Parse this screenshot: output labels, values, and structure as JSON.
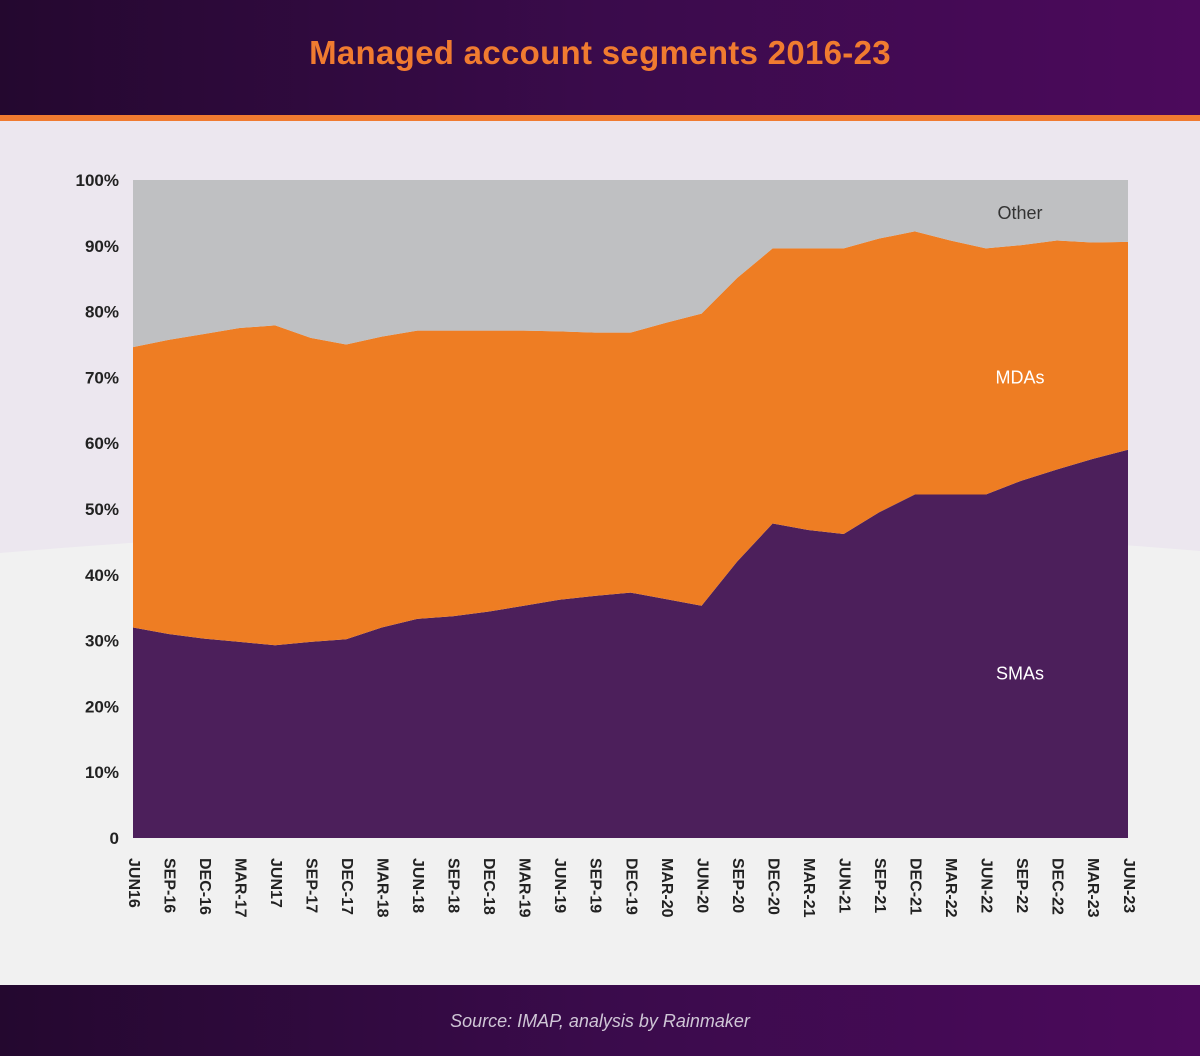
{
  "header": {
    "title": "Managed account segments 2016-23"
  },
  "footer": {
    "source": "Source: IMAP, analysis by Rainmaker"
  },
  "colors": {
    "smas": "#4c1f5b",
    "mdas": "#ee7d23",
    "other": "#bfc0c2",
    "header_bg": "#3a0b4b",
    "accent": "#f07b30"
  },
  "chart_data": {
    "type": "area",
    "stacked": true,
    "title": "Managed account segments 2016-23",
    "xlabel": "",
    "ylabel": "",
    "ylim": [
      0,
      100
    ],
    "yticks": [
      0,
      10,
      20,
      30,
      40,
      50,
      60,
      70,
      80,
      90,
      100
    ],
    "ytick_labels": [
      "0",
      "10%",
      "20%",
      "30%",
      "40%",
      "50%",
      "60%",
      "70%",
      "80%",
      "90%",
      "100%"
    ],
    "categories": [
      "JUN16",
      "SEP-16",
      "DEC-16",
      "MAR-17",
      "JUN17",
      "SEP-17",
      "DEC-17",
      "MAR-18",
      "JUN-18",
      "SEP-18",
      "DEC-18",
      "MAR-19",
      "JUN-19",
      "SEP-19",
      "DEC-19",
      "MAR-20",
      "JUN-20",
      "SEP-20",
      "DEC-20",
      "MAR-21",
      "JUN-21",
      "SEP-21",
      "DEC-21",
      "MAR-22",
      "JUN-22",
      "SEP-22",
      "DEC-22",
      "MAR-23",
      "JUN-23"
    ],
    "series": [
      {
        "name": "SMAs",
        "values": [
          32,
          31,
          30.3,
          29.8,
          29.3,
          29.8,
          30.2,
          32,
          33.3,
          33.7,
          34.4,
          35.3,
          36.2,
          36.8,
          37.3,
          36.3,
          35.3,
          42,
          47.8,
          46.8,
          46.2,
          49.5,
          52.2,
          52.2,
          52.2,
          54.3,
          56,
          57.6,
          59
        ]
      },
      {
        "name": "MDAs",
        "values": [
          42.6,
          44.7,
          46.3,
          47.7,
          48.6,
          46.2,
          44.8,
          44.2,
          43.8,
          43.4,
          42.7,
          41.8,
          40.8,
          40,
          39.5,
          42,
          44.4,
          43.1,
          41.8,
          42.8,
          43.4,
          41.6,
          40,
          38.6,
          37.4,
          35.8,
          34.8,
          32.9,
          31.6
        ]
      },
      {
        "name": "Other",
        "values": [
          25.4,
          24.3,
          23.4,
          22.5,
          22.1,
          24,
          25,
          23.8,
          22.9,
          22.9,
          22.9,
          22.9,
          23,
          23.2,
          23.2,
          21.7,
          20.3,
          14.9,
          10.4,
          10.4,
          10.4,
          8.9,
          7.8,
          9.2,
          10.4,
          9.9,
          9.2,
          9.5,
          9.4
        ]
      }
    ],
    "series_labels": [
      "SMAs",
      "MDAs",
      "Other"
    ],
    "legend": "inline labels on areas (right side)"
  }
}
